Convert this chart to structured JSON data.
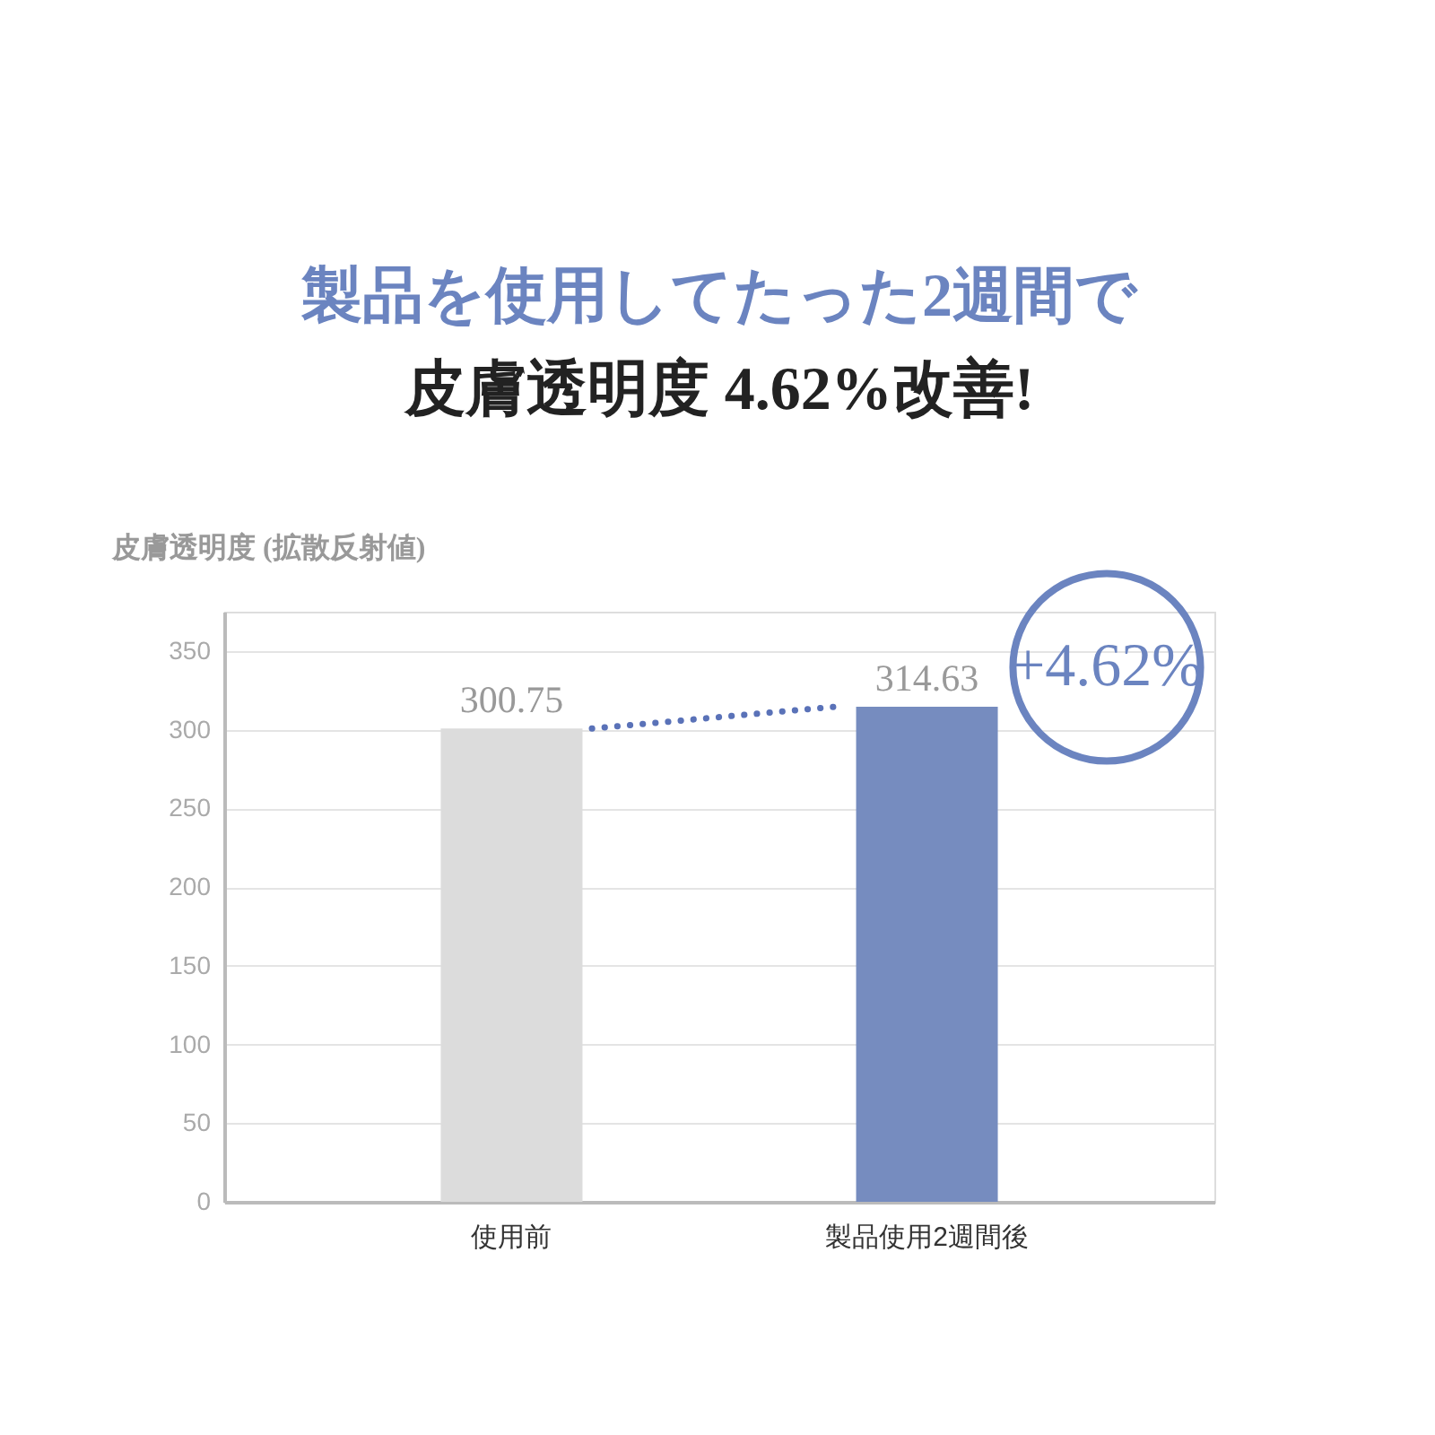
{
  "chart_data": {
    "type": "bar",
    "title": "製品を使用してたった2週間で",
    "subtitle": "皮膚透明度 4.62%改善!",
    "ylabel": "皮膚透明度 (拡散反射値)",
    "categories": [
      "使用前",
      "製品使用2週間後"
    ],
    "values": [
      300.75,
      314.63
    ],
    "colors": [
      "#dcdcdc",
      "#768cbf"
    ],
    "data_labels": true,
    "ylim": [
      0,
      375
    ],
    "yticks": [
      0,
      50,
      100,
      150,
      200,
      250,
      300,
      350
    ],
    "grid": "y",
    "annotations": [
      "+4.62%"
    ]
  }
}
